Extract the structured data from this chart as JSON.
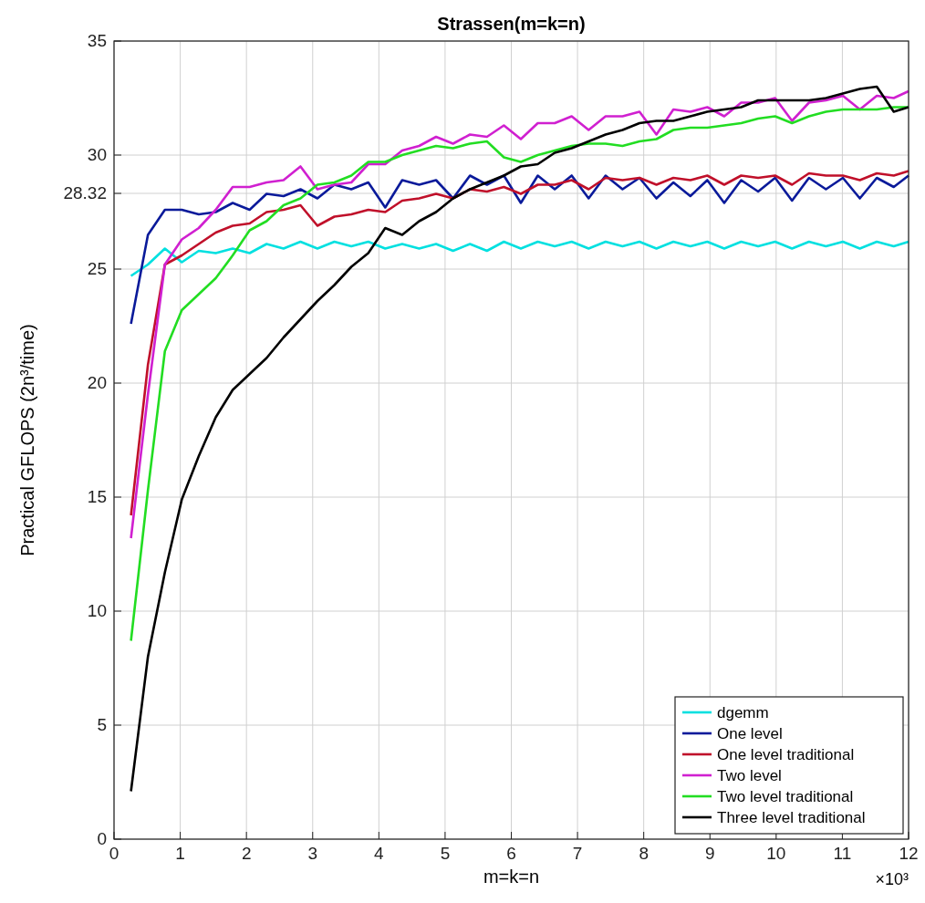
{
  "chart_data": {
    "type": "line",
    "title": "Strassen(m=k=n)",
    "xlabel": "m=k=n",
    "ylabel": "Practical GFLOPS (2n³/time)",
    "annotations": [
      "×10³"
    ],
    "x": [
      0.256,
      0.512,
      0.768,
      1.024,
      1.28,
      1.536,
      1.792,
      2.048,
      2.304,
      2.56,
      2.816,
      3.072,
      3.328,
      3.584,
      3.84,
      4.096,
      4.352,
      4.608,
      4.864,
      5.12,
      5.376,
      5.632,
      5.888,
      6.144,
      6.4,
      6.656,
      6.912,
      7.168,
      7.424,
      7.68,
      7.936,
      8.192,
      8.448,
      8.704,
      8.96,
      9.216,
      9.472,
      9.728,
      9.984,
      10.24,
      10.496,
      10.752,
      11.008,
      11.264,
      11.52,
      11.776,
      12
    ],
    "series": [
      {
        "name": "dgemm",
        "color": "#00e0e0",
        "values": [
          24.7,
          25.2,
          25.9,
          25.3,
          25.8,
          25.7,
          25.9,
          25.7,
          26.1,
          25.9,
          26.2,
          25.9,
          26.2,
          26.0,
          26.2,
          25.9,
          26.1,
          25.9,
          26.1,
          25.8,
          26.1,
          25.8,
          26.2,
          25.9,
          26.2,
          26.0,
          26.2,
          25.9,
          26.2,
          26.0,
          26.2,
          25.9,
          26.2,
          26.0,
          26.2,
          25.9,
          26.2,
          26.0,
          26.2,
          25.9,
          26.2,
          26.0,
          26.2,
          25.9,
          26.2,
          26.0,
          26.2
        ]
      },
      {
        "name": "One level",
        "color": "#0a1a9a",
        "values": [
          22.6,
          26.5,
          27.6,
          27.6,
          27.4,
          27.5,
          27.9,
          27.6,
          28.3,
          28.2,
          28.5,
          28.1,
          28.7,
          28.5,
          28.8,
          27.7,
          28.9,
          28.7,
          28.9,
          28.1,
          29.1,
          28.7,
          29.1,
          27.9,
          29.1,
          28.5,
          29.1,
          28.1,
          29.1,
          28.5,
          29.0,
          28.1,
          28.8,
          28.2,
          28.9,
          27.9,
          28.9,
          28.4,
          29.0,
          28.0,
          29.0,
          28.5,
          29.0,
          28.1,
          29.0,
          28.6,
          29.1
        ]
      },
      {
        "name": "One level traditional",
        "color": "#c0102a",
        "values": [
          14.2,
          20.8,
          25.2,
          25.6,
          26.1,
          26.6,
          26.9,
          27.0,
          27.5,
          27.6,
          27.8,
          26.9,
          27.3,
          27.4,
          27.6,
          27.5,
          28.0,
          28.1,
          28.3,
          28.1,
          28.5,
          28.4,
          28.6,
          28.3,
          28.7,
          28.7,
          28.9,
          28.5,
          29.0,
          28.9,
          29.0,
          28.7,
          29.0,
          28.9,
          29.1,
          28.7,
          29.1,
          29.0,
          29.1,
          28.7,
          29.2,
          29.1,
          29.1,
          28.9,
          29.2,
          29.1,
          29.3
        ]
      },
      {
        "name": "Two level",
        "color": "#d020d0",
        "values": [
          13.2,
          19.5,
          25.2,
          26.3,
          26.8,
          27.6,
          28.6,
          28.6,
          28.8,
          28.9,
          29.5,
          28.5,
          28.7,
          28.8,
          29.6,
          29.6,
          30.2,
          30.4,
          30.8,
          30.5,
          30.9,
          30.8,
          31.3,
          30.7,
          31.4,
          31.4,
          31.7,
          31.1,
          31.7,
          31.7,
          31.9,
          30.9,
          32.0,
          31.9,
          32.1,
          31.7,
          32.3,
          32.3,
          32.5,
          31.5,
          32.3,
          32.4,
          32.6,
          32.0,
          32.6,
          32.5,
          32.8
        ]
      },
      {
        "name": "Two level traditional",
        "color": "#22dd22",
        "values": [
          8.7,
          15.3,
          21.4,
          23.2,
          23.9,
          24.6,
          25.6,
          26.7,
          27.1,
          27.8,
          28.1,
          28.7,
          28.8,
          29.1,
          29.7,
          29.7,
          30.0,
          30.2,
          30.4,
          30.3,
          30.5,
          30.6,
          29.9,
          29.7,
          30.0,
          30.2,
          30.4,
          30.5,
          30.5,
          30.4,
          30.6,
          30.7,
          31.1,
          31.2,
          31.2,
          31.3,
          31.4,
          31.6,
          31.7,
          31.4,
          31.7,
          31.9,
          32.0,
          32.0,
          32.0,
          32.1,
          32.1
        ]
      },
      {
        "name": "Three level traditional",
        "color": "#000000",
        "values": [
          2.1,
          8.0,
          11.7,
          14.9,
          16.8,
          18.5,
          19.7,
          20.4,
          21.1,
          22.0,
          22.8,
          23.6,
          24.3,
          25.1,
          25.7,
          26.8,
          26.5,
          27.1,
          27.5,
          28.1,
          28.5,
          28.8,
          29.1,
          29.5,
          29.6,
          30.1,
          30.3,
          30.6,
          30.9,
          31.1,
          31.4,
          31.5,
          31.5,
          31.7,
          31.9,
          32.0,
          32.1,
          32.4,
          32.4,
          32.4,
          32.4,
          32.5,
          32.7,
          32.9,
          33.0,
          31.9,
          32.1
        ]
      }
    ],
    "xlim": [
      0,
      12
    ],
    "xticks": [
      0,
      1,
      2,
      3,
      4,
      5,
      6,
      7,
      8,
      9,
      10,
      11,
      12
    ],
    "ylim": [
      0,
      35
    ],
    "yticks": [
      0,
      5,
      10,
      15,
      20,
      25,
      28.32,
      30,
      35
    ],
    "grid": true,
    "legend": "bottom right"
  }
}
